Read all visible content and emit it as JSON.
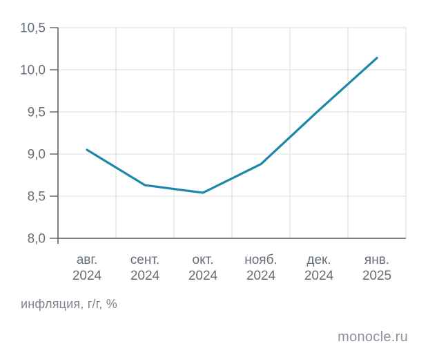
{
  "chart_data": {
    "type": "line",
    "title": "",
    "categories": [
      "авг. 2024",
      "сент. 2024",
      "окт. 2024",
      "нояб. 2024",
      "дек. 2024",
      "янв. 2025"
    ],
    "category_lines": [
      [
        "авг.",
        "2024"
      ],
      [
        "сент.",
        "2024"
      ],
      [
        "окт.",
        "2024"
      ],
      [
        "нояб.",
        "2024"
      ],
      [
        "дек.",
        "2024"
      ],
      [
        "янв.",
        "2025"
      ]
    ],
    "series": [
      {
        "name": "инфляция, г/г, %",
        "values": [
          9.05,
          8.63,
          8.54,
          8.88,
          9.52,
          10.14
        ]
      }
    ],
    "xlabel": "",
    "ylabel": "инфляция, г/г, %",
    "ylim": [
      8.0,
      10.5
    ],
    "ytick_values": [
      8.0,
      8.5,
      9.0,
      9.5,
      10.0,
      10.5
    ],
    "ytick_labels": [
      "8,0",
      "8,5",
      "9,0",
      "9,5",
      "10,0",
      "10,5"
    ],
    "grid": true,
    "legend": "none",
    "colors": {
      "line": "#1d87a9",
      "grid": "#e3e3e3",
      "axis": "#6a737c",
      "tick": "#6a737c",
      "label": "#666e77",
      "footnote": "#7d848d",
      "source": "#8b919b"
    }
  },
  "footnote": "инфляция, г/г, %",
  "source": "monocle.ru"
}
